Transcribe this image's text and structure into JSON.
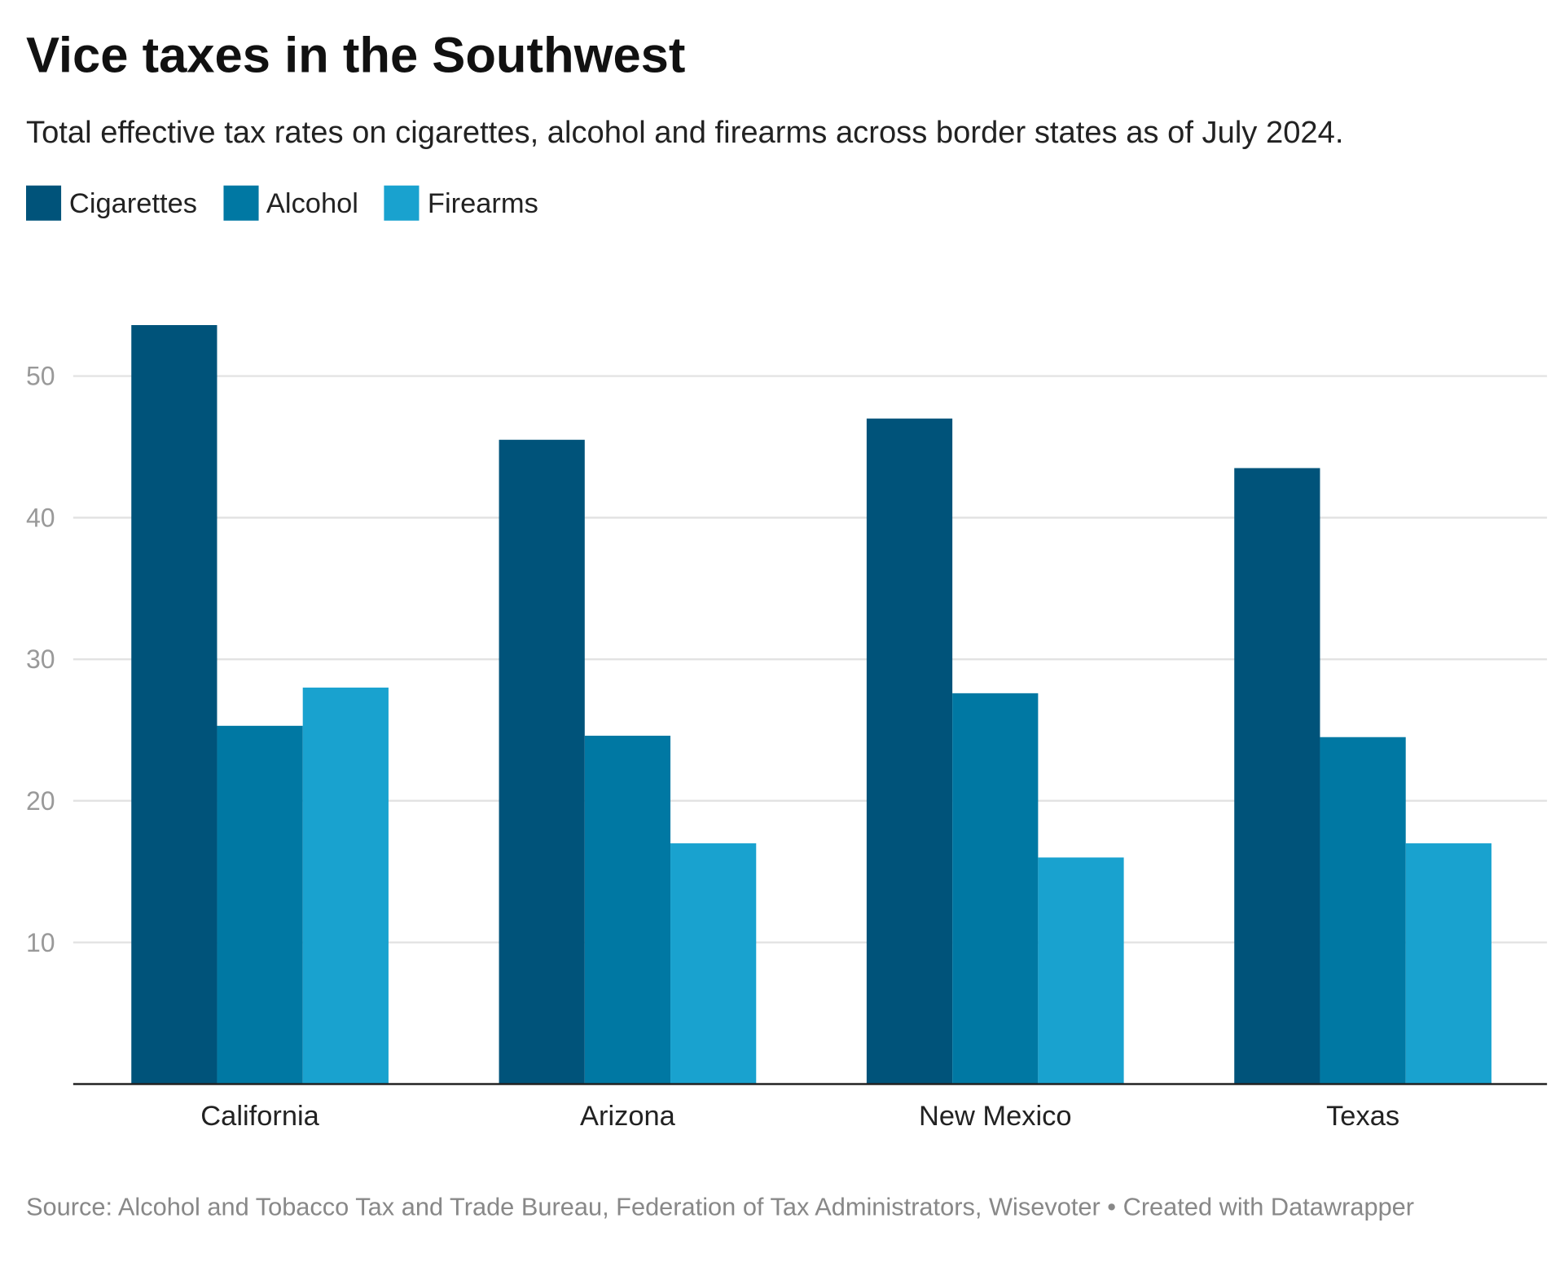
{
  "chart_data": {
    "type": "bar",
    "title": "Vice taxes in the Southwest",
    "subtitle": "Total effective tax rates on cigarettes, alcohol and firearms across border states as of July 2024.",
    "categories": [
      "California",
      "Arizona",
      "New Mexico",
      "Texas"
    ],
    "series": [
      {
        "name": "Cigarettes",
        "color": "#00537a",
        "values": [
          53.6,
          45.5,
          47.0,
          43.5
        ]
      },
      {
        "name": "Alcohol",
        "color": "#0078a3",
        "values": [
          25.3,
          24.6,
          27.6,
          24.5
        ]
      },
      {
        "name": "Firearms",
        "color": "#19a2cf",
        "values": [
          28.0,
          17.0,
          16.0,
          17.0
        ]
      }
    ],
    "yticks": [
      10,
      20,
      30,
      40,
      50
    ],
    "ylim": [
      0,
      57
    ],
    "grid": true,
    "legend_position": "top-left",
    "xlabel": "",
    "ylabel": "",
    "source": "Source: Alcohol and Tobacco Tax and Trade Bureau, Federation of Tax Administrators, Wisevoter • Created with Datawrapper"
  }
}
